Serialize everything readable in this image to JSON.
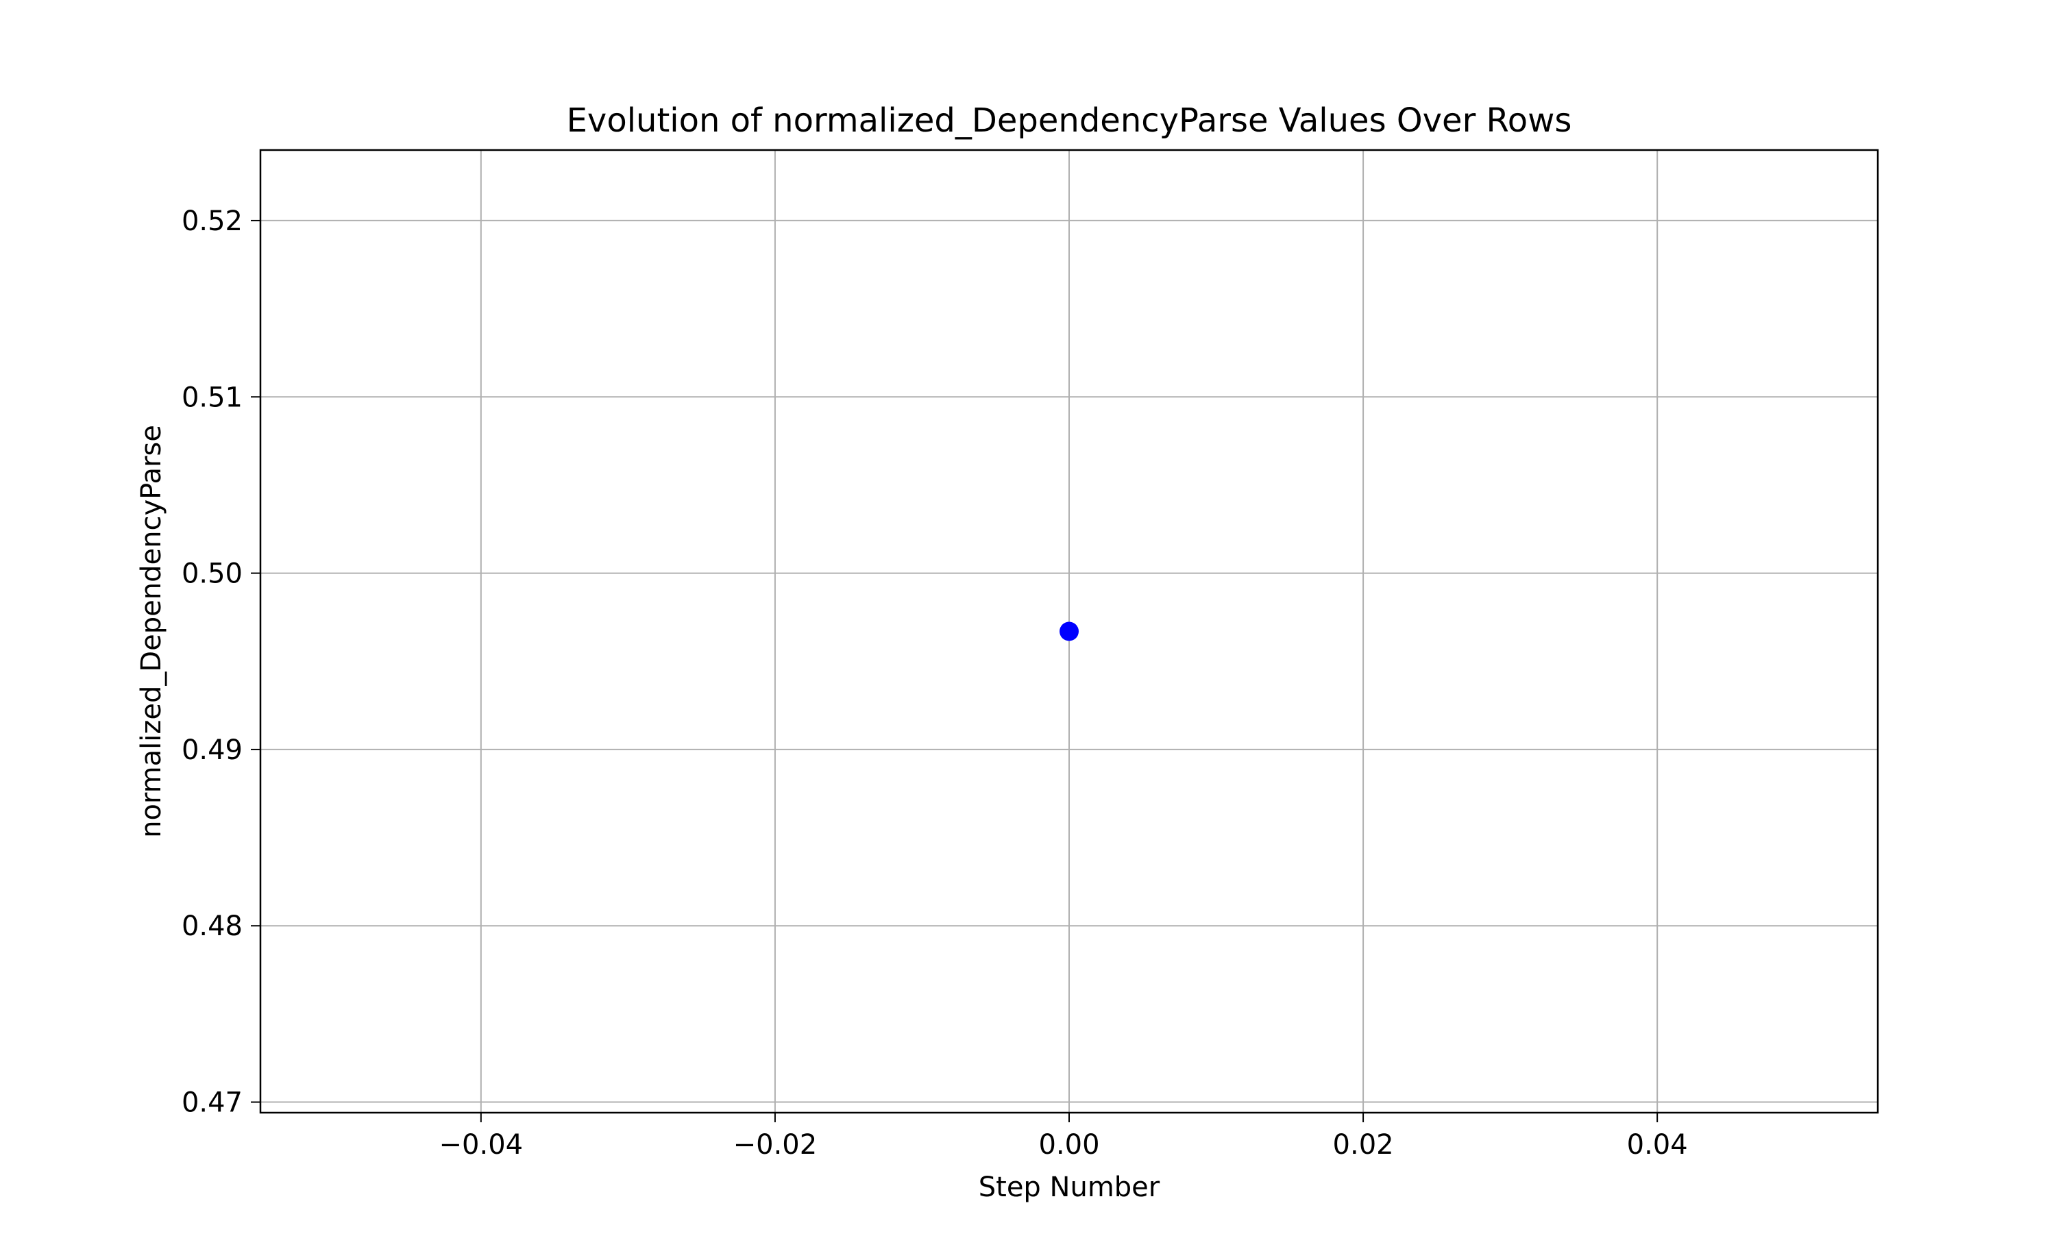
{
  "chart_data": {
    "type": "scatter",
    "title": "Evolution of normalized_DependencyParse Values Over Rows",
    "xlabel": "Step Number",
    "ylabel": "normalized_DependencyParse",
    "xlim": [
      -0.055,
      0.055
    ],
    "ylim": [
      0.4694,
      0.524
    ],
    "xticks": [
      -0.04,
      -0.02,
      0.0,
      0.02,
      0.04
    ],
    "xtick_labels": [
      "−0.04",
      "−0.02",
      "0.00",
      "0.02",
      "0.04"
    ],
    "yticks": [
      0.47,
      0.48,
      0.49,
      0.5,
      0.51,
      0.52
    ],
    "ytick_labels": [
      "0.47",
      "0.48",
      "0.49",
      "0.50",
      "0.51",
      "0.52"
    ],
    "grid": true,
    "legend": "none",
    "series": [
      {
        "color": "#0000ff",
        "points": [
          {
            "x": 0.0,
            "y": 0.4967
          }
        ]
      }
    ]
  }
}
